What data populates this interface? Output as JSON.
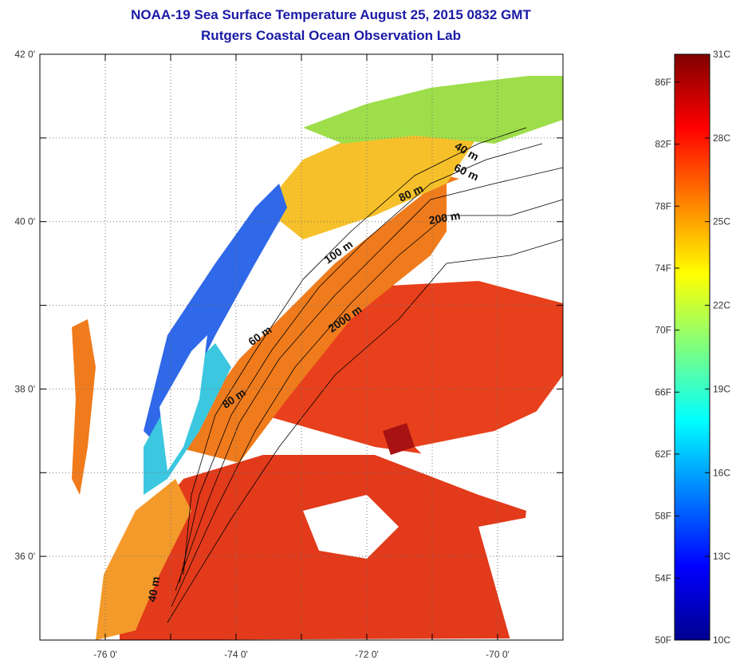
{
  "header": {
    "title_line1": "NOAA-19 Sea Surface Temperature August 25, 2015 0832 GMT",
    "title_line2": "Rutgers Coastal Ocean Observation Lab"
  },
  "map": {
    "lon_range": [
      -77,
      -69
    ],
    "lat_range": [
      35,
      42
    ],
    "lon_ticks": [
      {
        "value": -76,
        "label": "-76 0'"
      },
      {
        "value": -74,
        "label": "-74 0'"
      },
      {
        "value": -72,
        "label": "-72 0'"
      },
      {
        "value": -70,
        "label": "-70 0'"
      }
    ],
    "lat_ticks": [
      {
        "value": 42,
        "label": "42 0'"
      },
      {
        "value": 40,
        "label": "40 0'"
      },
      {
        "value": 38,
        "label": "38 0'"
      },
      {
        "value": 36,
        "label": "36 0'"
      }
    ],
    "contour_labels": [
      {
        "text": "40 m",
        "lon": -70.5,
        "lat": 40.8,
        "rot": 30
      },
      {
        "text": "60 m",
        "lon": -70.5,
        "lat": 40.55,
        "rot": 25
      },
      {
        "text": "80 m",
        "lon": -71.3,
        "lat": 40.3,
        "rot": -25
      },
      {
        "text": "200 m",
        "lon": -70.8,
        "lat": 40.0,
        "rot": -10
      },
      {
        "text": "100 m",
        "lon": -72.4,
        "lat": 39.6,
        "rot": -35
      },
      {
        "text": "2000 m",
        "lon": -72.3,
        "lat": 38.8,
        "rot": -35
      },
      {
        "text": "60 m",
        "lon": -73.6,
        "lat": 38.6,
        "rot": -35
      },
      {
        "text": "80 m",
        "lon": -74.0,
        "lat": 37.85,
        "rot": -35
      },
      {
        "text": "40 m",
        "lon": -75.2,
        "lat": 35.6,
        "rot": -80
      }
    ]
  },
  "colorbar": {
    "range_c": [
      10,
      31
    ],
    "colormap": "jet",
    "fahrenheit_ticks": [
      {
        "value": 50,
        "label": "50F"
      },
      {
        "value": 54,
        "label": "54F"
      },
      {
        "value": 58,
        "label": "58F"
      },
      {
        "value": 62,
        "label": "62F"
      },
      {
        "value": 66,
        "label": "66F"
      },
      {
        "value": 70,
        "label": "70F"
      },
      {
        "value": 74,
        "label": "74F"
      },
      {
        "value": 78,
        "label": "78F"
      },
      {
        "value": 82,
        "label": "82F"
      },
      {
        "value": 86,
        "label": "86F"
      }
    ],
    "celsius_ticks": [
      {
        "value": 10,
        "label": "10C"
      },
      {
        "value": 13,
        "label": "13C"
      },
      {
        "value": 16,
        "label": "16C"
      },
      {
        "value": 19,
        "label": "19C"
      },
      {
        "value": 22,
        "label": "22C"
      },
      {
        "value": 25,
        "label": "25C"
      },
      {
        "value": 28,
        "label": "28C"
      },
      {
        "value": 31,
        "label": "31C"
      }
    ]
  }
}
